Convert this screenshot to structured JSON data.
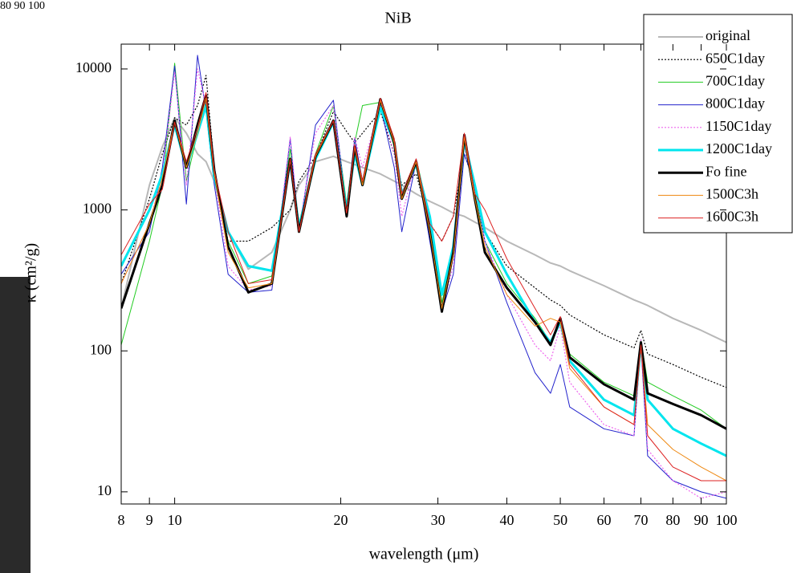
{
  "background_text": "80  90 100",
  "chart_data": {
    "type": "line",
    "title": "NiB",
    "x_label": "wavelength (μm)",
    "y_label": "κ (cm²/g)",
    "log_x": true,
    "log_y": true,
    "legend": "top-right",
    "xlim": [
      8,
      100
    ],
    "ylim": [
      8.2,
      15000
    ],
    "xticks": [
      8,
      9,
      10,
      20,
      30,
      40,
      50,
      60,
      70,
      80,
      90,
      100
    ],
    "yticks": [
      10,
      100,
      1000,
      10000
    ],
    "x": [
      8,
      9,
      9.5,
      10,
      10.5,
      11,
      11.4,
      11.8,
      12.5,
      13.6,
      15,
      16.2,
      16.8,
      18,
      19.4,
      20.5,
      21.2,
      21.9,
      23.6,
      25,
      25.8,
      27.4,
      29,
      30.5,
      32,
      33.5,
      35,
      36.5,
      40,
      45,
      48,
      50,
      52,
      60,
      68,
      70,
      72,
      80,
      90,
      100
    ],
    "series": [
      {
        "name": "original",
        "color": "#b8b8b8",
        "line_width": 2,
        "line_style": "solid",
        "values": [
          200,
          1500,
          2800,
          4500,
          3500,
          2500,
          2200,
          1600,
          700,
          380,
          500,
          1000,
          1500,
          2200,
          2400,
          2200,
          2100,
          2000,
          1800,
          1600,
          1500,
          1300,
          1150,
          1050,
          950,
          900,
          820,
          750,
          600,
          480,
          420,
          400,
          370,
          290,
          230,
          220,
          210,
          170,
          140,
          115
        ]
      },
      {
        "name": "650C1day",
        "color": "#000000",
        "line_width": 1.2,
        "line_style": "dotted",
        "values": [
          300,
          1200,
          2500,
          4500,
          4000,
          5500,
          9000,
          2000,
          600,
          600,
          750,
          1000,
          1600,
          2400,
          5000,
          3600,
          3000,
          3500,
          5000,
          2500,
          1500,
          1800,
          800,
          600,
          900,
          2500,
          1500,
          700,
          400,
          280,
          230,
          210,
          180,
          130,
          105,
          140,
          95,
          80,
          65,
          55
        ]
      },
      {
        "name": "700C1day",
        "color": "#22cc22",
        "line_width": 1,
        "line_style": "solid",
        "values": [
          110,
          600,
          1500,
          11000,
          1600,
          3500,
          6500,
          1800,
          600,
          300,
          340,
          2700,
          800,
          2500,
          5500,
          1100,
          3000,
          5500,
          5800,
          2800,
          1300,
          2300,
          900,
          220,
          500,
          3200,
          1300,
          600,
          300,
          170,
          115,
          170,
          95,
          60,
          48,
          120,
          60,
          48,
          38,
          28
        ]
      },
      {
        "name": "800C1day",
        "color": "#2222cc",
        "line_width": 1,
        "line_style": "solid",
        "values": [
          350,
          700,
          2000,
          10500,
          1100,
          12500,
          5000,
          1500,
          350,
          260,
          270,
          3200,
          700,
          4000,
          6000,
          1000,
          3200,
          1600,
          5500,
          2000,
          700,
          2200,
          600,
          190,
          350,
          2500,
          1500,
          600,
          220,
          70,
          50,
          80,
          40,
          28,
          25,
          110,
          18,
          12,
          10,
          9
        ]
      },
      {
        "name": "1150C1day",
        "color": "#ee66ee",
        "line_width": 1.2,
        "line_style": "dotted",
        "values": [
          300,
          800,
          1800,
          9500,
          1500,
          10000,
          5500,
          1700,
          400,
          270,
          290,
          3300,
          750,
          3500,
          5500,
          1000,
          3300,
          2000,
          5500,
          2500,
          900,
          2300,
          700,
          200,
          400,
          2800,
          1400,
          600,
          250,
          110,
          85,
          150,
          60,
          30,
          25,
          120,
          20,
          12,
          9,
          10
        ]
      },
      {
        "name": "1200C1day",
        "color": "#00e5ee",
        "line_width": 3,
        "line_style": "solid",
        "values": [
          400,
          1000,
          1800,
          4000,
          2000,
          3500,
          5500,
          1700,
          700,
          400,
          370,
          2200,
          750,
          2300,
          4200,
          1000,
          2500,
          1500,
          5300,
          3000,
          1300,
          2100,
          900,
          250,
          550,
          3100,
          1500,
          700,
          350,
          160,
          115,
          160,
          85,
          45,
          35,
          110,
          45,
          28,
          22,
          18
        ]
      },
      {
        "name": "Fo fine",
        "color": "#000000",
        "line_width": 3,
        "line_style": "solid",
        "values": [
          200,
          800,
          1500,
          4300,
          2000,
          4000,
          6500,
          1900,
          550,
          260,
          300,
          2300,
          700,
          2400,
          4300,
          900,
          2800,
          1500,
          6100,
          3000,
          1200,
          2200,
          700,
          190,
          500,
          3400,
          1200,
          500,
          280,
          160,
          110,
          170,
          90,
          58,
          45,
          115,
          50,
          42,
          35,
          28
        ]
      },
      {
        "name": "1500C3h",
        "color": "#ee8811",
        "line_width": 1,
        "line_style": "solid",
        "values": [
          300,
          800,
          1700,
          4200,
          2000,
          3500,
          6200,
          1800,
          500,
          280,
          300,
          2300,
          700,
          2400,
          4300,
          950,
          2800,
          1500,
          6000,
          3000,
          1200,
          2200,
          700,
          200,
          480,
          3300,
          1200,
          550,
          250,
          150,
          170,
          160,
          75,
          40,
          30,
          110,
          30,
          20,
          15,
          12
        ]
      },
      {
        "name": "1600C3h",
        "color": "#dd2222",
        "line_width": 1,
        "line_style": "solid",
        "values": [
          480,
          1100,
          1400,
          4200,
          2200,
          3800,
          6800,
          1900,
          700,
          300,
          320,
          2300,
          700,
          2500,
          4300,
          950,
          2900,
          1600,
          6200,
          3200,
          1300,
          2300,
          800,
          600,
          900,
          3500,
          1300,
          1000,
          450,
          200,
          130,
          175,
          80,
          40,
          30,
          110,
          25,
          15,
          12,
          12
        ]
      }
    ]
  }
}
